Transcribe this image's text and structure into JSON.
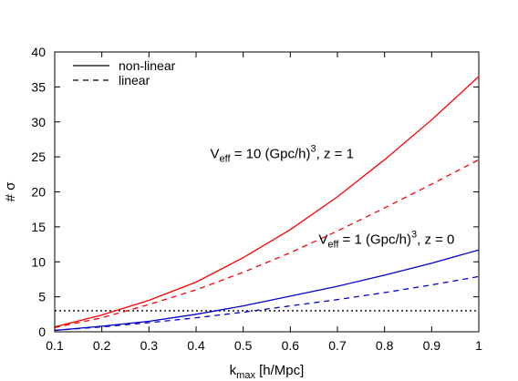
{
  "chart_data": {
    "type": "line",
    "xlabel": "k",
    "xlabel_sub": "max",
    "xlabel_rest": " [h/Mpc]",
    "ylabel": "# σ",
    "xlim": [
      0.1,
      1.0
    ],
    "ylim": [
      0,
      40
    ],
    "xticks": [
      0.1,
      0.2,
      0.3,
      0.4,
      0.5,
      0.6,
      0.7,
      0.8,
      0.9,
      1.0
    ],
    "xtick_labels": [
      "0.1",
      "0.2",
      "0.3",
      "0.4",
      "0.5",
      "0.6",
      "0.7",
      "0.8",
      "0.9",
      "1"
    ],
    "yticks": [
      0,
      5,
      10,
      15,
      20,
      25,
      30,
      35,
      40
    ],
    "ytick_labels": [
      "0",
      "5",
      "10",
      "15",
      "20",
      "25",
      "30",
      "35",
      "40"
    ],
    "grid": false,
    "legend_position": "top-left",
    "legend": [
      {
        "label": "non-linear",
        "style": "solid"
      },
      {
        "label": "linear",
        "style": "dashed"
      }
    ],
    "series": [
      {
        "group": "Veff10",
        "style": "solid",
        "color": "#ff0000",
        "x": [
          0.1,
          0.2,
          0.3,
          0.4,
          0.5,
          0.6,
          0.7,
          0.8,
          0.9,
          1.0
        ],
        "y": [
          0.7,
          2.4,
          4.5,
          7.1,
          10.6,
          14.6,
          19.3,
          24.6,
          30.3,
          36.5
        ]
      },
      {
        "group": "Veff10",
        "style": "dashed",
        "color": "#ff0000",
        "x": [
          0.1,
          0.2,
          0.3,
          0.4,
          0.5,
          0.6,
          0.7,
          0.8,
          0.9,
          1.0
        ],
        "y": [
          0.6,
          2.0,
          3.9,
          6.0,
          8.5,
          11.3,
          14.4,
          17.7,
          21.1,
          24.6
        ]
      },
      {
        "group": "Veff1",
        "style": "solid",
        "color": "#0000cc",
        "x": [
          0.1,
          0.2,
          0.3,
          0.4,
          0.5,
          0.6,
          0.7,
          0.8,
          0.9,
          1.0
        ],
        "y": [
          0.2,
          0.8,
          1.5,
          2.5,
          3.7,
          5.1,
          6.5,
          8.1,
          9.8,
          11.7
        ]
      },
      {
        "group": "Veff1",
        "style": "dashed",
        "color": "#0000cc",
        "x": [
          0.1,
          0.2,
          0.3,
          0.4,
          0.5,
          0.6,
          0.7,
          0.8,
          0.9,
          1.0
        ],
        "y": [
          0.2,
          0.7,
          1.3,
          2.0,
          2.8,
          3.7,
          4.6,
          5.6,
          6.7,
          7.9
        ]
      }
    ],
    "reference_line": {
      "y": 3,
      "style": "dotted",
      "color": "#000000"
    },
    "annotations": [
      {
        "id": "ann-veff10",
        "prefix": "V",
        "sub": "eff",
        "middle": " = 10 (Gpc/h)",
        "sup": "3",
        "suffix": ", z = 1",
        "x": 0.43,
        "y": 24.8
      },
      {
        "id": "ann-veff1",
        "prefix": "V",
        "sub": "eff",
        "middle": " = 1 (Gpc/h)",
        "sup": "3",
        "suffix": ", z = 0",
        "x": 0.66,
        "y": 12.6
      }
    ]
  }
}
